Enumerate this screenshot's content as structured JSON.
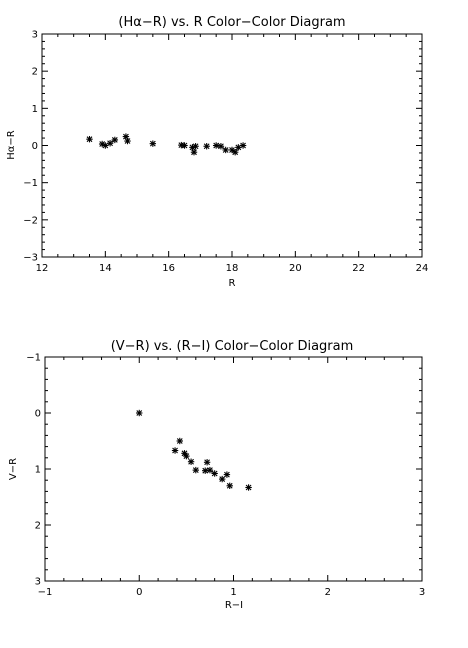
{
  "chart_data": [
    {
      "type": "scatter",
      "title": "(Hα−R) vs. R Color−Color Diagram",
      "xlabel": "R",
      "ylabel": "Hα−R",
      "xlim": [
        12,
        24
      ],
      "ylim": [
        -3,
        3
      ],
      "y_inverted": false,
      "x_ticks": [
        12,
        14,
        16,
        18,
        20,
        22,
        24
      ],
      "y_ticks": [
        -3,
        -2,
        -1,
        0,
        1,
        2,
        3
      ],
      "grid": false,
      "marker": "asterisk",
      "points": [
        {
          "x": 13.5,
          "y": 0.17
        },
        {
          "x": 13.9,
          "y": 0.04
        },
        {
          "x": 14.0,
          "y": 0.0
        },
        {
          "x": 14.15,
          "y": 0.06
        },
        {
          "x": 14.3,
          "y": 0.15
        },
        {
          "x": 14.65,
          "y": 0.24
        },
        {
          "x": 14.7,
          "y": 0.12
        },
        {
          "x": 15.5,
          "y": 0.05
        },
        {
          "x": 16.4,
          "y": 0.01
        },
        {
          "x": 16.5,
          "y": 0.0
        },
        {
          "x": 16.75,
          "y": -0.05
        },
        {
          "x": 16.8,
          "y": -0.18
        },
        {
          "x": 16.85,
          "y": -0.02
        },
        {
          "x": 17.2,
          "y": -0.02
        },
        {
          "x": 17.5,
          "y": 0.0
        },
        {
          "x": 17.65,
          "y": -0.02
        },
        {
          "x": 17.8,
          "y": -0.12
        },
        {
          "x": 18.0,
          "y": -0.12
        },
        {
          "x": 18.1,
          "y": -0.18
        },
        {
          "x": 18.2,
          "y": -0.05
        },
        {
          "x": 18.35,
          "y": 0.0
        }
      ]
    },
    {
      "type": "scatter",
      "title": "(V−R) vs. (R−I) Color−Color Diagram",
      "xlabel": "R−I",
      "ylabel": "V−R",
      "xlim": [
        -1,
        3
      ],
      "ylim": [
        -1,
        3
      ],
      "y_inverted": true,
      "x_ticks": [
        -1,
        0,
        1,
        2,
        3
      ],
      "y_ticks": [
        -1,
        0,
        1,
        2,
        3
      ],
      "grid": false,
      "marker": "asterisk",
      "points": [
        {
          "x": 0.0,
          "y": 0.0
        },
        {
          "x": 0.38,
          "y": 0.67
        },
        {
          "x": 0.43,
          "y": 0.5
        },
        {
          "x": 0.48,
          "y": 0.72
        },
        {
          "x": 0.5,
          "y": 0.77
        },
        {
          "x": 0.55,
          "y": 0.87
        },
        {
          "x": 0.6,
          "y": 1.02
        },
        {
          "x": 0.7,
          "y": 1.03
        },
        {
          "x": 0.72,
          "y": 0.88
        },
        {
          "x": 0.75,
          "y": 1.02
        },
        {
          "x": 0.8,
          "y": 1.08
        },
        {
          "x": 0.88,
          "y": 1.18
        },
        {
          "x": 0.93,
          "y": 1.1
        },
        {
          "x": 0.96,
          "y": 1.3
        },
        {
          "x": 1.16,
          "y": 1.33
        }
      ]
    }
  ]
}
